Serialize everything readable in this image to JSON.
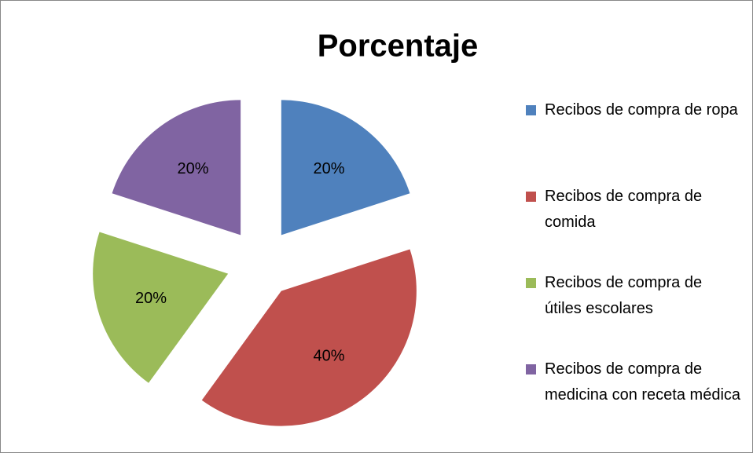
{
  "chart_data": {
    "type": "pie",
    "title": "Porcentaje",
    "categories": [
      "Recibos de compra de ropa",
      "Recibos de compra de comida",
      "Recibos de compra de útiles escolares",
      "Recibos de compra de medicina con receta médica"
    ],
    "values": [
      20,
      40,
      20,
      20
    ],
    "value_labels": [
      "20%",
      "40%",
      "20%",
      "20%"
    ],
    "colors": [
      "#4f81bd",
      "#c0504d",
      "#9bbb59",
      "#8064a2"
    ],
    "exploded": true,
    "legend": "right"
  }
}
